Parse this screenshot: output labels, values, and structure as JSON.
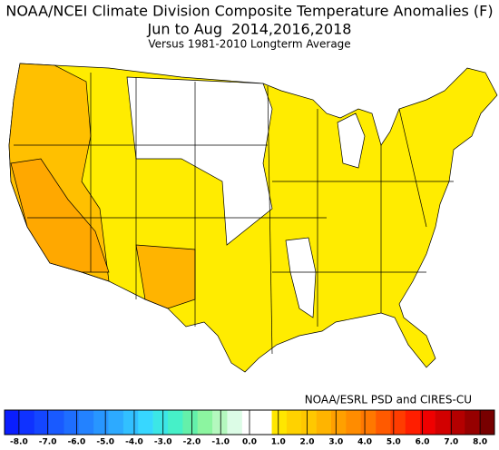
{
  "title": "NOAA/NCEI Climate Division Composite Temperature Anomalies (F)",
  "subtitle": "Jun to Aug  2014,2016,2018",
  "note": "Versus 1981-2010 Longterm Average",
  "credit": "NOAA/ESRL PSD and CIRES-CU",
  "colorbar": {
    "lim": [
      -8.5,
      8.5
    ],
    "colors": [
      "#0a1eff",
      "#0f32ff",
      "#1446ff",
      "#195aff",
      "#1e6eff",
      "#2382ff",
      "#2896ff",
      "#2daaff",
      "#32c0ff",
      "#37d7ff",
      "#3ce6e6",
      "#46f0c8",
      "#64f0aa",
      "#8cf5a0",
      "#b4f8be",
      "#dcfce6",
      "#ffffff",
      "#ffffff",
      "#ffe600",
      "#ffd200",
      "#ffc800",
      "#ffb400",
      "#ffa000",
      "#ff8c00",
      "#ff7800",
      "#ff5a00",
      "#ff3c00",
      "#ff1e00",
      "#f00000",
      "#d20000",
      "#b40000",
      "#960000",
      "#780000"
    ],
    "ticks": [
      {
        "value": -8,
        "label": "-8.0"
      },
      {
        "value": -7,
        "label": "-7.0"
      },
      {
        "value": -6,
        "label": "-6.0"
      },
      {
        "value": -5,
        "label": "-5.0"
      },
      {
        "value": -4,
        "label": "-4.0"
      },
      {
        "value": -3,
        "label": "-3.0"
      },
      {
        "value": -2,
        "label": "-2.0"
      },
      {
        "value": -1,
        "label": "-1.0"
      },
      {
        "value": 0,
        "label": "0.0"
      },
      {
        "value": 1,
        "label": "1.0"
      },
      {
        "value": 2,
        "label": "2.0"
      },
      {
        "value": 3,
        "label": "3.0"
      },
      {
        "value": 4,
        "label": "4.0"
      },
      {
        "value": 5,
        "label": "5.0"
      },
      {
        "value": 6,
        "label": "6.0"
      },
      {
        "value": 7,
        "label": "7.0"
      },
      {
        "value": 8,
        "label": "8.0"
      }
    ]
  }
}
